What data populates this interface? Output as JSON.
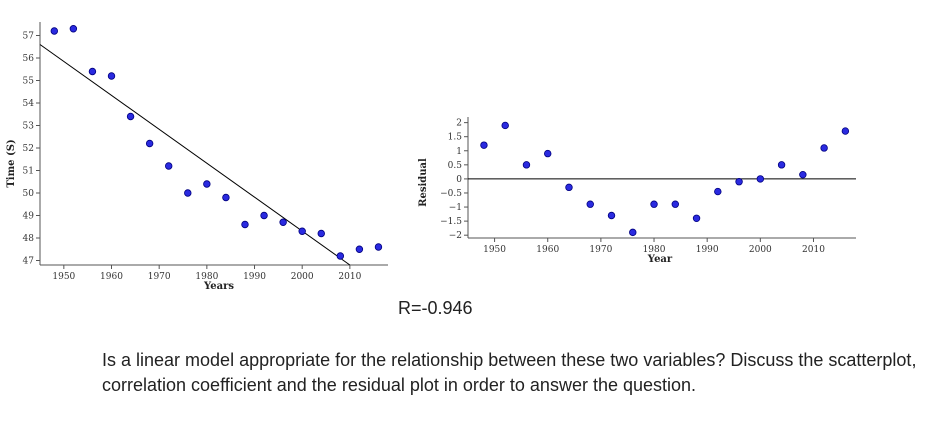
{
  "colors": {
    "point_fill": "#2a2ae0",
    "point_stroke": "#000080",
    "axis": "#555555",
    "line": "#000000"
  },
  "chart_data": [
    {
      "type": "scatter",
      "xlabel": "Years",
      "ylabel": "Time (S)",
      "xlim": [
        1945,
        2018
      ],
      "ylim": [
        46.8,
        57.6
      ],
      "xticks": [
        1950,
        1960,
        1970,
        1980,
        1990,
        2000,
        2010
      ],
      "yticks": [
        47,
        48,
        49,
        50,
        51,
        52,
        53,
        54,
        55,
        56,
        57
      ],
      "points": [
        {
          "x": 1948,
          "y": 57.2
        },
        {
          "x": 1952,
          "y": 57.3
        },
        {
          "x": 1956,
          "y": 55.4
        },
        {
          "x": 1960,
          "y": 55.2
        },
        {
          "x": 1964,
          "y": 53.4
        },
        {
          "x": 1968,
          "y": 52.2
        },
        {
          "x": 1972,
          "y": 51.2
        },
        {
          "x": 1976,
          "y": 50.0
        },
        {
          "x": 1980,
          "y": 50.4
        },
        {
          "x": 1984,
          "y": 49.8
        },
        {
          "x": 1988,
          "y": 48.6
        },
        {
          "x": 1992,
          "y": 49.0
        },
        {
          "x": 1996,
          "y": 48.7
        },
        {
          "x": 2000,
          "y": 48.3
        },
        {
          "x": 2004,
          "y": 48.2
        },
        {
          "x": 2008,
          "y": 47.2
        },
        {
          "x": 2012,
          "y": 47.5
        },
        {
          "x": 2016,
          "y": 47.6
        }
      ],
      "trend_line": [
        {
          "x": 1945,
          "y": 56.6
        },
        {
          "x": 2010,
          "y": 46.8
        }
      ]
    },
    {
      "type": "scatter",
      "xlabel": "Year",
      "ylabel": "Residual",
      "xlim": [
        1945,
        2018
      ],
      "ylim": [
        -2.1,
        2.2
      ],
      "xticks": [
        1950,
        1960,
        1970,
        1980,
        1990,
        2000,
        2010
      ],
      "yticks": [
        2,
        1.5,
        1,
        0.5,
        0,
        -0.5,
        -1,
        -1.5,
        -2
      ],
      "ytick_labels": [
        "2",
        "1.5",
        "1",
        "0.5",
        "0",
        "−0.5",
        "−1",
        "−1.5",
        "−2"
      ],
      "zero_line": 0,
      "points": [
        {
          "x": 1948,
          "y": 1.2
        },
        {
          "x": 1952,
          "y": 1.9
        },
        {
          "x": 1956,
          "y": 0.5
        },
        {
          "x": 1960,
          "y": 0.9
        },
        {
          "x": 1964,
          "y": -0.3
        },
        {
          "x": 1968,
          "y": -0.9
        },
        {
          "x": 1972,
          "y": -1.3
        },
        {
          "x": 1976,
          "y": -1.9
        },
        {
          "x": 1980,
          "y": -0.9
        },
        {
          "x": 1984,
          "y": -0.9
        },
        {
          "x": 1988,
          "y": -1.4
        },
        {
          "x": 1992,
          "y": -0.45
        },
        {
          "x": 1996,
          "y": -0.1
        },
        {
          "x": 2000,
          "y": 0.0
        },
        {
          "x": 2004,
          "y": 0.5
        },
        {
          "x": 2008,
          "y": 0.15
        },
        {
          "x": 2012,
          "y": 1.1
        },
        {
          "x": 2016,
          "y": 1.7
        }
      ]
    }
  ],
  "text": {
    "r_value": "R=-0.946",
    "question": "Is a linear model appropriate for the relationship between these two variables? Discuss the scatterplot, correlation coefficient and the residual plot in order to answer the question."
  }
}
